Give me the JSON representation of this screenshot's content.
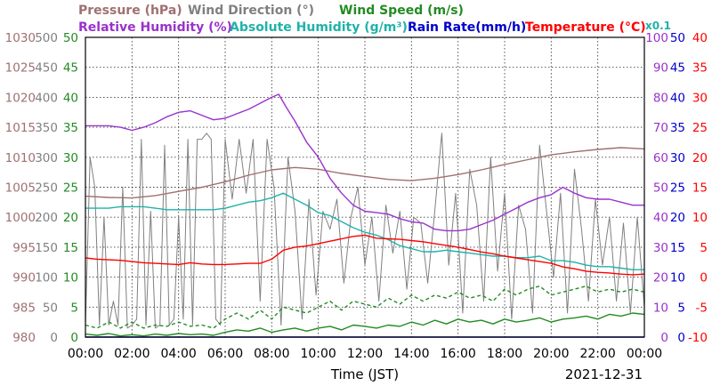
{
  "chart_data": {
    "type": "line",
    "title_rows": [
      [
        {
          "text": "Pressure (hPa)",
          "color": "#a07070"
        },
        {
          "text": "Wind Direction (°)",
          "color": "#808080"
        },
        {
          "text": "Wind Speed (m/s)",
          "color": "#228b22"
        }
      ],
      [
        {
          "text": "Relative Humidity (%)",
          "color": "#9932cc"
        },
        {
          "text": "Absolute Humidity (g/m³)",
          "color": "#20b2aa"
        },
        {
          "text": "Rain Rate(mm/h)",
          "color": "#0000cd"
        },
        {
          "text": "Temperature (°C)",
          "color": "#ff0000"
        }
      ]
    ],
    "scale_note": "x0.1",
    "xlabel": "Time (JST)",
    "date_label": "2021-12-31",
    "x_range_hours": [
      0,
      24
    ],
    "x_ticks": [
      "00:00",
      "02:00",
      "04:00",
      "06:00",
      "08:00",
      "10:00",
      "12:00",
      "14:00",
      "16:00",
      "18:00",
      "20:00",
      "22:00",
      "00:00"
    ],
    "grid": true,
    "axes": {
      "pressure": {
        "side": "left",
        "color": "#a07070",
        "range": [
          980,
          1030
        ],
        "ticks": [
          "1030",
          "1025",
          "1020",
          "1015",
          "1010",
          "1005",
          "1000",
          "995",
          "990",
          "985",
          "980"
        ]
      },
      "wind_direction": {
        "side": "left",
        "color": "#808080",
        "range": [
          0,
          500
        ],
        "ticks": [
          "500",
          "450",
          "400",
          "350",
          "300",
          "250",
          "200",
          "150",
          "100",
          "50",
          "0"
        ]
      },
      "wind_speed": {
        "side": "left",
        "color": "#228b22",
        "range": [
          0,
          50
        ],
        "ticks": [
          "50",
          "45",
          "40",
          "35",
          "30",
          "25",
          "20",
          "15",
          "10",
          "5",
          "0"
        ]
      },
      "humidity": {
        "side": "right",
        "color": "#9932cc",
        "range": [
          0,
          100
        ],
        "ticks": [
          "100",
          "90",
          "80",
          "70",
          "60",
          "50",
          "40",
          "30",
          "20",
          "10",
          "0"
        ]
      },
      "rain_rate": {
        "side": "right",
        "color": "#0000cd",
        "range": [
          0,
          50
        ],
        "ticks": [
          "50",
          "45",
          "40",
          "35",
          "30",
          "25",
          "20",
          "15",
          "10",
          "5",
          "0"
        ]
      },
      "temperature": {
        "side": "right",
        "color": "#ff0000",
        "range": [
          -10,
          40
        ],
        "ticks": [
          "40",
          "35",
          "30",
          "25",
          "20",
          "15",
          "10",
          "5",
          "0",
          "-5",
          "-10"
        ]
      }
    },
    "series": [
      {
        "key": "pressure",
        "axis": "pressure",
        "color": "#a07070",
        "x": [
          0,
          1,
          2,
          3,
          4,
          5,
          6,
          7,
          8,
          9,
          10,
          11,
          12,
          13,
          14,
          15,
          16,
          17,
          18,
          19,
          20,
          21,
          22,
          23,
          24
        ],
        "y": [
          1003.5,
          1003.3,
          1003.2,
          1003.6,
          1004.3,
          1005.0,
          1005.9,
          1007.0,
          1007.9,
          1008.3,
          1008.0,
          1007.3,
          1006.8,
          1006.3,
          1006.1,
          1006.5,
          1007.1,
          1007.9,
          1008.8,
          1009.6,
          1010.4,
          1010.9,
          1011.3,
          1011.6,
          1011.4
        ]
      },
      {
        "key": "relative_humidity",
        "axis": "humidity",
        "color": "#9932cc",
        "x": [
          0,
          0.5,
          1,
          1.5,
          2,
          2.5,
          3,
          3.5,
          4,
          4.5,
          5,
          5.5,
          6,
          6.5,
          7,
          7.5,
          8,
          8.3,
          8.6,
          9,
          9.5,
          10,
          10.5,
          11,
          11.5,
          12,
          12.5,
          13,
          13.5,
          14,
          14.5,
          15,
          15.5,
          16,
          16.5,
          17,
          17.5,
          18,
          18.5,
          19,
          19.5,
          20,
          20.5,
          21,
          21.5,
          22,
          22.5,
          23,
          23.5,
          24
        ],
        "y": [
          70.5,
          70.5,
          70.5,
          70,
          69,
          70,
          71.5,
          73.5,
          75,
          75.5,
          74,
          72.5,
          73,
          74.5,
          76,
          78,
          80,
          81,
          77,
          72,
          65,
          60,
          53,
          48,
          44,
          42,
          41.5,
          41,
          39.5,
          38.5,
          38,
          36,
          35.5,
          35.5,
          36,
          37.5,
          39,
          41,
          43,
          45,
          46.5,
          47.5,
          50,
          48,
          46.5,
          46,
          46,
          45,
          44,
          44
        ]
      },
      {
        "key": "absolute_humidity",
        "axis": "humidity",
        "color": "#20b2aa",
        "x": [
          0,
          0.5,
          1,
          1.5,
          2,
          2.5,
          3,
          3.5,
          4,
          4.5,
          5,
          5.5,
          6,
          6.5,
          7,
          7.5,
          8,
          8.5,
          9,
          9.5,
          10,
          10.5,
          11,
          11.5,
          12,
          12.5,
          13,
          13.5,
          14,
          14.5,
          15,
          15.5,
          16,
          16.5,
          17,
          17.5,
          18,
          18.5,
          19,
          19.5,
          20,
          20.5,
          21,
          21.5,
          22,
          22.5,
          23,
          23.5,
          24
        ],
        "y": [
          43,
          43,
          43,
          43.5,
          43.5,
          43.5,
          43,
          42.5,
          42.5,
          42.5,
          42.5,
          42.5,
          43,
          44,
          45,
          45.5,
          46.5,
          48,
          46,
          44,
          41.5,
          40.5,
          38.5,
          36.5,
          35,
          34,
          32.5,
          30.5,
          29.5,
          28.5,
          28.5,
          29,
          28.5,
          28,
          27.5,
          27,
          27,
          26.5,
          26.5,
          27,
          25.5,
          25.5,
          25,
          24,
          23.5,
          23.5,
          23,
          22.5,
          22.5
        ]
      },
      {
        "key": "temperature",
        "axis": "temperature",
        "color": "#ff0000",
        "x": [
          0,
          0.5,
          1,
          1.5,
          2,
          2.5,
          3,
          3.5,
          4,
          4.5,
          5,
          5.5,
          6,
          6.5,
          7,
          7.5,
          8,
          8.5,
          9,
          9.5,
          10,
          10.5,
          11,
          11.5,
          12,
          12.5,
          13,
          13.5,
          14,
          14.5,
          15,
          15.5,
          16,
          16.5,
          17,
          17.5,
          18,
          18.5,
          19,
          19.5,
          20,
          20.5,
          21,
          21.5,
          22,
          22.5,
          23,
          23.5,
          24
        ],
        "y": [
          3.2,
          3.0,
          2.9,
          2.8,
          2.6,
          2.4,
          2.3,
          2.2,
          2.1,
          2.4,
          2.2,
          2.1,
          2.1,
          2.2,
          2.3,
          2.3,
          3.0,
          4.5,
          5.0,
          5.2,
          5.6,
          6.0,
          6.4,
          6.8,
          7.0,
          6.5,
          6.4,
          6.3,
          6.1,
          5.9,
          5.6,
          5.3,
          5.0,
          4.6,
          4.2,
          3.9,
          3.5,
          3.2,
          2.9,
          2.6,
          2.3,
          1.7,
          1.4,
          1.0,
          0.8,
          0.7,
          0.5,
          0.4,
          0.5
        ]
      },
      {
        "key": "rain_rate",
        "axis": "rain_rate",
        "color": "#0000cd",
        "x": [
          0,
          24
        ],
        "y": [
          0,
          0
        ]
      },
      {
        "key": "wind_speed",
        "axis": "wind_speed",
        "color": "#228b22",
        "style": "solid",
        "x": [
          0,
          0.5,
          1,
          1.5,
          2,
          2.5,
          3,
          3.5,
          4,
          4.5,
          5,
          5.5,
          6,
          6.5,
          7,
          7.5,
          8,
          8.5,
          9,
          9.5,
          10,
          10.5,
          11,
          11.5,
          12,
          12.5,
          13,
          13.5,
          14,
          14.5,
          15,
          15.5,
          16,
          16.5,
          17,
          17.5,
          18,
          18.5,
          19,
          19.5,
          20,
          20.5,
          21,
          21.5,
          22,
          22.5,
          23,
          23.5,
          24
        ],
        "y": [
          0.5,
          0.3,
          0.6,
          0.2,
          0.4,
          0.2,
          0.5,
          0.3,
          0.6,
          0.4,
          0.5,
          0.3,
          0.8,
          1.2,
          1.0,
          1.5,
          0.8,
          1.2,
          1.5,
          1.0,
          1.5,
          1.8,
          1.2,
          2.0,
          1.8,
          1.5,
          2.0,
          1.8,
          2.5,
          2.0,
          2.8,
          2.2,
          3.0,
          2.5,
          2.8,
          2.2,
          3.0,
          2.5,
          2.8,
          3.2,
          2.5,
          3.0,
          3.2,
          3.5,
          3.0,
          3.8,
          3.5,
          4.0,
          3.8
        ]
      },
      {
        "key": "wind_gust",
        "axis": "wind_speed",
        "color": "#228b22",
        "style": "dashed",
        "x": [
          0,
          0.5,
          1,
          1.5,
          2,
          2.5,
          3,
          3.5,
          4,
          4.5,
          5,
          5.5,
          6,
          6.5,
          7,
          7.5,
          8,
          8.5,
          9,
          9.5,
          10,
          10.5,
          11,
          11.5,
          12,
          12.5,
          13,
          13.5,
          14,
          14.5,
          15,
          15.5,
          16,
          16.5,
          17,
          17.5,
          18,
          18.5,
          19,
          19.5,
          20,
          20.5,
          21,
          21.5,
          22,
          22.5,
          23,
          23.5,
          24
        ],
        "y": [
          2.0,
          1.5,
          2.5,
          1.5,
          2.5,
          1.5,
          2.0,
          1.8,
          2.5,
          1.8,
          2.0,
          1.5,
          3.0,
          4.0,
          3.0,
          4.5,
          3.0,
          5.0,
          4.5,
          4.0,
          5.0,
          6.0,
          4.5,
          6.0,
          5.5,
          5.0,
          6.5,
          5.5,
          7.0,
          6.0,
          7.0,
          6.5,
          7.5,
          6.5,
          7.0,
          6.0,
          8.0,
          7.0,
          8.0,
          8.5,
          7.0,
          7.5,
          8.0,
          8.5,
          7.5,
          8.0,
          7.5,
          8.0,
          7.5
        ]
      },
      {
        "key": "wind_direction",
        "axis": "wind_direction",
        "color": "#808080",
        "x": [
          0,
          0.2,
          0.4,
          0.6,
          0.8,
          1.0,
          1.2,
          1.4,
          1.6,
          1.8,
          2.0,
          2.2,
          2.4,
          2.6,
          2.8,
          3.0,
          3.2,
          3.4,
          3.6,
          3.8,
          4.0,
          4.2,
          4.4,
          4.6,
          4.8,
          5.0,
          5.2,
          5.4,
          5.6,
          5.8,
          6.0,
          6.3,
          6.6,
          6.9,
          7.2,
          7.5,
          7.8,
          8.1,
          8.4,
          8.7,
          9.0,
          9.3,
          9.6,
          9.9,
          10.2,
          10.5,
          10.8,
          11.1,
          11.4,
          11.7,
          12.0,
          12.3,
          12.6,
          12.9,
          13.2,
          13.5,
          13.8,
          14.1,
          14.4,
          14.7,
          15.0,
          15.3,
          15.6,
          15.9,
          16.2,
          16.5,
          16.8,
          17.1,
          17.4,
          17.7,
          18.0,
          18.3,
          18.6,
          18.9,
          19.2,
          19.5,
          19.8,
          20.1,
          20.4,
          20.7,
          21.0,
          21.3,
          21.6,
          21.9,
          22.2,
          22.5,
          22.8,
          23.1,
          23.4,
          23.7,
          24.0
        ],
        "y": [
          20,
          300,
          250,
          20,
          200,
          20,
          60,
          20,
          250,
          15,
          20,
          30,
          330,
          20,
          210,
          15,
          20,
          320,
          20,
          30,
          200,
          30,
          330,
          20,
          330,
          330,
          340,
          330,
          30,
          20,
          330,
          230,
          330,
          240,
          330,
          60,
          330,
          250,
          20,
          300,
          210,
          30,
          230,
          70,
          210,
          180,
          230,
          90,
          200,
          250,
          120,
          200,
          60,
          220,
          140,
          210,
          80,
          200,
          190,
          90,
          210,
          340,
          120,
          240,
          40,
          280,
          220,
          60,
          300,
          110,
          240,
          30,
          220,
          180,
          40,
          320,
          210,
          100,
          240,
          40,
          280,
          180,
          60,
          230,
          120,
          200,
          60,
          190,
          40,
          200,
          50
        ]
      }
    ]
  }
}
